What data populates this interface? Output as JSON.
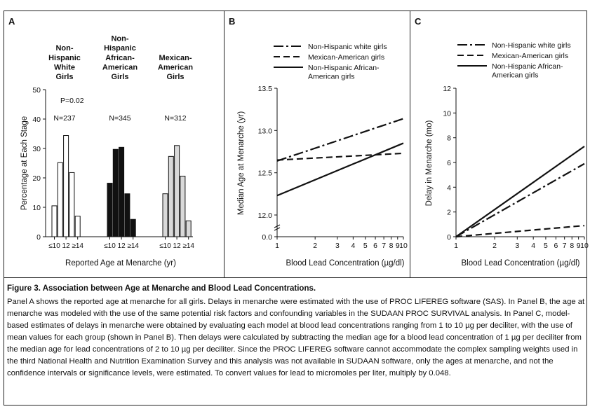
{
  "panels": [
    {
      "letter": "A"
    },
    {
      "letter": "B"
    },
    {
      "letter": "C"
    }
  ],
  "chart_data": [
    {
      "panel": "A",
      "type": "bar",
      "ylabel": "Percentage at Each Stage",
      "xlabel": "Reported Age at Menarche (yr)",
      "ylim": [
        0,
        50
      ],
      "yticks": [
        "0",
        "10",
        "20",
        "30",
        "40",
        "50"
      ],
      "category_ticks": [
        "≤10",
        "12",
        "≥14"
      ],
      "pvalue": "P=0.02",
      "groups": [
        {
          "name": "Non-Hispanic White Girls",
          "title_lines": [
            "Non-",
            "Hispanic",
            "White",
            "Girls"
          ],
          "n": "N=237",
          "values": [
            10.5,
            25.2,
            34.4,
            21.8,
            7.0
          ],
          "fill": "#ffffff"
        },
        {
          "name": "Non-Hispanic African-American Girls",
          "title_lines": [
            "Non-",
            "Hispanic",
            "African-",
            "American",
            "Girls"
          ],
          "n": "N=345",
          "values": [
            18.2,
            29.7,
            30.4,
            14.6,
            5.9
          ],
          "fill": "#111111"
        },
        {
          "name": "Mexican-American Girls",
          "title_lines": [
            "Mexican-",
            "American",
            "Girls"
          ],
          "n": "N=312",
          "values": [
            14.6,
            27.3,
            31.0,
            20.6,
            5.4
          ],
          "fill": "#d9d9d9"
        }
      ]
    },
    {
      "panel": "B",
      "type": "line",
      "ylabel": "Median Age at Menarche (yr)",
      "xlabel": "Blood Lead Concentration (µg/dl)",
      "xscale": "log",
      "xlim": [
        1,
        10
      ],
      "xticks": [
        "1",
        "2",
        "3",
        "4",
        "5",
        "6",
        "7",
        "8",
        "9",
        "10"
      ],
      "ylim": [
        12.0,
        13.5
      ],
      "yticks": [
        "0.0",
        "12.0",
        "12.5",
        "13.0",
        "13.5"
      ],
      "axis_break": true,
      "series": [
        {
          "name": "Non-Hispanic white girls",
          "style": "dash-dot",
          "x": [
            1,
            10
          ],
          "y": [
            12.64,
            13.14
          ]
        },
        {
          "name": "Mexican-American girls",
          "style": "dashed",
          "x": [
            1,
            10
          ],
          "y": [
            12.65,
            12.73
          ]
        },
        {
          "name": "Non-Hispanic African-American girls",
          "legend_lines": [
            "Non-Hispanic African-",
            "American girls"
          ],
          "style": "solid",
          "x": [
            1,
            10
          ],
          "y": [
            12.23,
            12.85
          ]
        }
      ]
    },
    {
      "panel": "C",
      "type": "line",
      "ylabel": "Delay in Menarche (mo)",
      "xlabel": "Blood Lead Concentration (µg/dl)",
      "xscale": "log",
      "xlim": [
        1,
        10
      ],
      "xticks": [
        "1",
        "2",
        "3",
        "4",
        "5",
        "6",
        "7",
        "8",
        "9",
        "10"
      ],
      "ylim": [
        0,
        12
      ],
      "yticks": [
        "0",
        "2",
        "4",
        "6",
        "8",
        "10",
        "12"
      ],
      "series": [
        {
          "name": "Non-Hispanic white girls",
          "style": "dash-dot",
          "x": [
            1,
            10
          ],
          "y": [
            0,
            5.9
          ]
        },
        {
          "name": "Mexican-American girls",
          "style": "dashed",
          "x": [
            1,
            10
          ],
          "y": [
            0,
            0.9
          ]
        },
        {
          "name": "Non-Hispanic African-American girls",
          "legend_lines": [
            "Non-Hispanic African-",
            "American girls"
          ],
          "style": "solid",
          "x": [
            1,
            10
          ],
          "y": [
            0,
            7.3
          ]
        }
      ]
    }
  ],
  "caption": {
    "title": "Figure 3. Association between Age at Menarche and Blood Lead Concentrations.",
    "body": "Panel A shows the reported age at menarche for all girls. Delays in menarche were estimated with the use of PROC LIFEREG software (SAS). In Panel B, the age at menarche was modeled with the use of the same potential risk factors and confounding variables in the SUDAAN PROC SURVIVAL analysis. In Panel C, model-based estimates of delays in menarche were obtained by evaluating each model at blood lead concentrations ranging from 1 to 10 µg per deciliter, with the use of mean values for each group (shown in Panel B). Then delays were calculated by subtracting the median age for a blood lead concentration of 1 µg per deciliter from the median age for lead concentrations of 2 to 10 µg per deciliter. Since the PROC LIFEREG software cannot accommodate the complex sampling weights used in the third National Health and Nutrition Examination Survey and this analysis was not available in SUDAAN software, only the ages at menarche, and not the confidence intervals or significance levels, were estimated. To convert values for lead to micromoles per liter, multiply by 0.048."
  }
}
